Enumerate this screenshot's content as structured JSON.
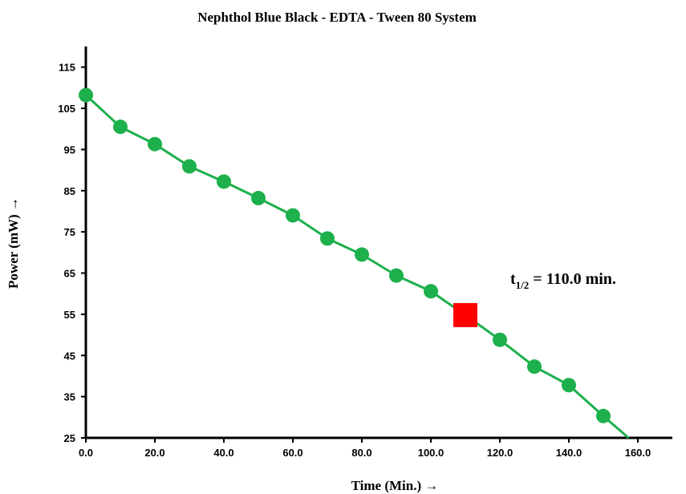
{
  "chart_data": {
    "type": "scatter",
    "title": "Nephthol Blue Black - EDTA - Tween 80 System",
    "xlabel": "Time (Min.) →",
    "ylabel": "Power (mW) →",
    "xlim": [
      0,
      170
    ],
    "ylim": [
      25,
      120
    ],
    "x_ticks": [
      "0.0",
      "20.0",
      "40.0",
      "60.0",
      "80.0",
      "100.0",
      "120.0",
      "140.0",
      "160.0"
    ],
    "x_tick_values": [
      0,
      20,
      40,
      60,
      80,
      100,
      120,
      140,
      160
    ],
    "y_ticks": [
      "25",
      "35",
      "45",
      "55",
      "65",
      "75",
      "85",
      "95",
      "105",
      "115"
    ],
    "y_tick_values": [
      25,
      35,
      45,
      55,
      65,
      75,
      85,
      95,
      105,
      115
    ],
    "grid": false,
    "series": [
      {
        "x": [
          0,
          10,
          20,
          30,
          40,
          50,
          60,
          70,
          80,
          90,
          100,
          120,
          130,
          140,
          150
        ],
        "y": [
          108.2,
          100.5,
          96.3,
          90.9,
          87.2,
          83.2,
          79.0,
          73.4,
          69.5,
          64.4,
          60.6,
          48.8,
          42.3,
          37.8,
          30.3
        ],
        "color": "#1db04c",
        "line_end": {
          "x": 158,
          "y": 24.5
        }
      }
    ],
    "half_life_point": {
      "x": 110,
      "y": 54.8,
      "color": "#ff0000",
      "marker": "square"
    },
    "annotation": {
      "main": "t",
      "sub": "1/2",
      "rest": " = 110.0 min."
    }
  }
}
